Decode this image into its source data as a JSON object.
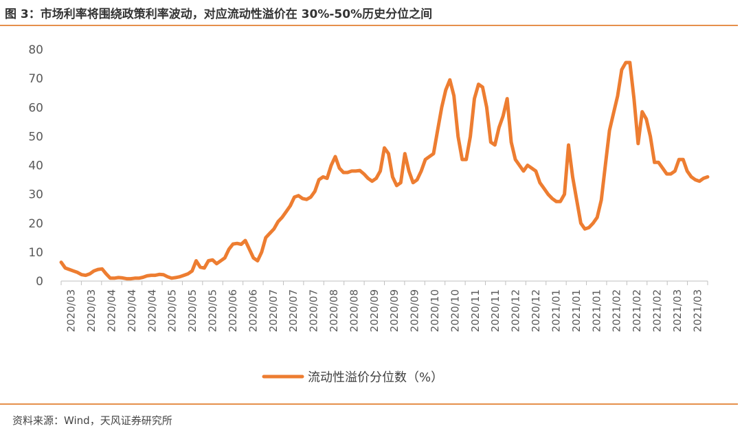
{
  "figure": {
    "title": "图 3：市场利率将围绕政策利率波动，对应流动性溢价在 30%-50%历史分位之间",
    "source": "资料来源：Wind，天风证券研究所",
    "line_color": "#ed7d31"
  },
  "chart_data": {
    "type": "line",
    "title": "",
    "xlabel": "",
    "ylabel": "",
    "ylim": [
      0,
      80
    ],
    "yticks": [
      0,
      10,
      20,
      30,
      40,
      50,
      60,
      70,
      80
    ],
    "grid": false,
    "legend_position": "bottom",
    "x_tick_labels": [
      "2020/03",
      "2020/03",
      "2020/04",
      "2020/04",
      "2020/04",
      "2020/05",
      "2020/05",
      "2020/05",
      "2020/06",
      "2020/06",
      "2020/07",
      "2020/07",
      "2020/07",
      "2020/08",
      "2020/08",
      "2020/09",
      "2020/09",
      "2020/09",
      "2020/10",
      "2020/10",
      "2020/11",
      "2020/11",
      "2020/12",
      "2020/12",
      "2021/01",
      "2021/01",
      "2021/01",
      "2021/02",
      "2021/02",
      "2021/02",
      "2021/03",
      "2021/03"
    ],
    "series": [
      {
        "name": "流动性溢价分位数（%）",
        "values": [
          6.5,
          4.5,
          4,
          3.5,
          3,
          2.2,
          2,
          2.5,
          3.5,
          4,
          4.2,
          2.5,
          1,
          1,
          1.2,
          1.1,
          0.8,
          0.8,
          1,
          1,
          1.3,
          1.8,
          2,
          2,
          2.3,
          2.2,
          1.5,
          1,
          1.2,
          1.5,
          2,
          2.5,
          3.5,
          7,
          4.8,
          4.5,
          7,
          7.3,
          6,
          7,
          8,
          11,
          12.8,
          13,
          12.7,
          14,
          11,
          8,
          7,
          10,
          15,
          16.5,
          18,
          20.5,
          22,
          24,
          26,
          29,
          29.5,
          28.5,
          28.2,
          29,
          31,
          35,
          36,
          35.5,
          40,
          43,
          39,
          37.5,
          37.5,
          38,
          38,
          38.2,
          37,
          35.5,
          34.5,
          35.5,
          38,
          46,
          44,
          36,
          33,
          34,
          44,
          38,
          34,
          35,
          38,
          42,
          43,
          44,
          52,
          60,
          66,
          69.5,
          64,
          50,
          42,
          42,
          50,
          63,
          68,
          67,
          60,
          48,
          47,
          53,
          57,
          63,
          48,
          42,
          40,
          38,
          40,
          39,
          38,
          34,
          32,
          30,
          28.5,
          27.5,
          27.5,
          30,
          47,
          36,
          28,
          20,
          18,
          18.5,
          20,
          22,
          28,
          40,
          52,
          58,
          64,
          73,
          75.5,
          75.5,
          63,
          47.5,
          58.5,
          56,
          50,
          41,
          41,
          39,
          37,
          37,
          38,
          42,
          42,
          38,
          36,
          35,
          34.5,
          35.5,
          36
        ]
      }
    ]
  }
}
